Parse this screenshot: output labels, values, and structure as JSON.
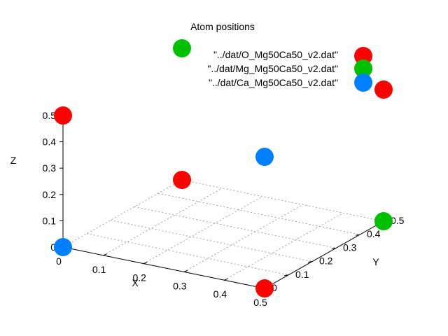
{
  "chart_data": {
    "type": "scatter",
    "title": "Atom positions",
    "xlabel": "X",
    "ylabel": "Y",
    "zlabel": "Z",
    "xlim": [
      0,
      0.5
    ],
    "ylim": [
      0,
      0.5
    ],
    "zlim": [
      0,
      0.5
    ],
    "x_ticks": [
      "0",
      "0.1",
      "0.2",
      "0.3",
      "0.4",
      "0.5"
    ],
    "y_ticks": [
      "0",
      "0.1",
      "0.2",
      "0.3",
      "0.4",
      "0.5"
    ],
    "z_ticks": [
      "0",
      "0.1",
      "0.2",
      "0.3",
      "0.4",
      "0.5"
    ],
    "grid": true,
    "legend": "top-right",
    "series": [
      {
        "name": "\"../dat/O_Mg50Ca50_v2.dat\"",
        "color": "#ff0000",
        "points": [
          {
            "x": 0.5,
            "y": 0,
            "z": 0
          },
          {
            "x": 0,
            "y": 0,
            "z": 0.5
          },
          {
            "x": 0.5,
            "y": 0.5,
            "z": 0.5
          },
          {
            "x": 0,
            "y": 0.5,
            "z": 0
          }
        ]
      },
      {
        "name": "\"../dat/Mg_Mg50Ca50_v2.dat\"",
        "color": "#00c000",
        "points": [
          {
            "x": 0.5,
            "y": 0.5,
            "z": 0
          },
          {
            "x": 0,
            "y": 0.5,
            "z": 0.5
          }
        ]
      },
      {
        "name": "\"../dat/Ca_Mg50Ca50_v2.dat\"",
        "color": "#0080ff",
        "points": [
          {
            "x": 0,
            "y": 0,
            "z": 0
          },
          {
            "x": 0.5,
            "y": 0,
            "z": 0.5
          }
        ]
      }
    ]
  }
}
